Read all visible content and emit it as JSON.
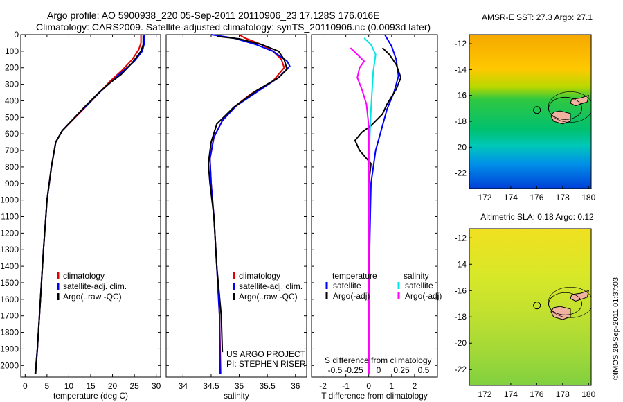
{
  "header": {
    "line1": "Argo profile: AO 5900938_220 05-Sep-2011 20110906_23 17.128S 176.016E",
    "line2": "Climatology: CARS2009. Satellite-adjusted climatology: synTS_20110906.nc (0.0093d later)"
  },
  "side_note": "©IMOS 28-Sep-2011 01:37:03",
  "colors": {
    "climatology": "#e00000",
    "satellite": "#0000ff",
    "argo": "#000000",
    "sal_sat": "#00e5e5",
    "sal_argo": "#ff00ff"
  },
  "chart_data": [
    {
      "type": "line",
      "name": "temperature-profile",
      "xlabel": "temperature (deg C)",
      "ylabel": "",
      "xlim": [
        -1,
        31
      ],
      "ylim": [
        2070,
        0
      ],
      "xticks": [
        0,
        5,
        10,
        15,
        20,
        25,
        30
      ],
      "yticks": [
        0,
        100,
        200,
        300,
        400,
        500,
        600,
        700,
        800,
        900,
        1000,
        1100,
        1200,
        1300,
        1400,
        1500,
        1600,
        1700,
        1800,
        1900,
        2000
      ],
      "legend": [
        "climatology",
        "satellite-adj. clim.",
        "Argo(..raw -QC)"
      ],
      "series": [
        {
          "name": "climatology",
          "color": "#e00000",
          "points": [
            [
              26.5,
              0
            ],
            [
              26.5,
              50
            ],
            [
              26,
              90
            ],
            [
              24.5,
              150
            ],
            [
              22,
              220
            ],
            [
              19.5,
              280
            ],
            [
              17,
              350
            ],
            [
              14.5,
              420
            ],
            [
              11.5,
              500
            ],
            [
              8.5,
              580
            ],
            [
              7,
              650
            ],
            [
              6,
              800
            ],
            [
              5,
              1000
            ],
            [
              4.2,
              1300
            ],
            [
              3.5,
              1600
            ],
            [
              2.8,
              1900
            ],
            [
              2.3,
              2050
            ]
          ]
        },
        {
          "name": "satellite-adj. clim.",
          "color": "#0000ff",
          "points": [
            [
              27.3,
              0
            ],
            [
              27.3,
              50
            ],
            [
              26.8,
              100
            ],
            [
              25,
              160
            ],
            [
              22,
              230
            ],
            [
              19.5,
              290
            ],
            [
              17,
              350
            ],
            [
              14,
              430
            ],
            [
              11,
              510
            ],
            [
              8.5,
              580
            ],
            [
              7,
              650
            ],
            [
              6,
              800
            ],
            [
              5,
              1000
            ],
            [
              4.2,
              1300
            ],
            [
              3.5,
              1600
            ],
            [
              2.8,
              1900
            ],
            [
              2.3,
              2050
            ]
          ]
        },
        {
          "name": "Argo(..raw -QC)",
          "color": "#000000",
          "points": [
            [
              27,
              5
            ],
            [
              27,
              60
            ],
            [
              26.5,
              100
            ],
            [
              24.5,
              170
            ],
            [
              22,
              240
            ],
            [
              19,
              300
            ],
            [
              16.5,
              360
            ],
            [
              13.5,
              440
            ],
            [
              11,
              510
            ],
            [
              8.5,
              580
            ],
            [
              7,
              650
            ],
            [
              6,
              800
            ],
            [
              5,
              1000
            ],
            [
              4.2,
              1300
            ],
            [
              3.5,
              1600
            ],
            [
              2.8,
              1900
            ],
            [
              2.4,
              2050
            ]
          ]
        }
      ]
    },
    {
      "type": "line",
      "name": "salinity-profile",
      "xlabel": "salinity",
      "xlim": [
        33.7,
        36.2
      ],
      "ylim": [
        2070,
        0
      ],
      "xticks": [
        34,
        34.5,
        35,
        35.5,
        36
      ],
      "xticklabels": [
        "34",
        "34.5",
        "35",
        "35.5",
        "36"
      ],
      "legend": [
        "climatology",
        "satellite-adj. clim.",
        "Argo(..raw -QC)"
      ],
      "annotations": [
        "US ARGO PROJECT",
        "PI: STEPHEN RISER"
      ],
      "series": [
        {
          "name": "climatology",
          "color": "#e00000",
          "points": [
            [
              35,
              0
            ],
            [
              35.1,
              20
            ],
            [
              35.4,
              60
            ],
            [
              35.6,
              100
            ],
            [
              35.75,
              150
            ],
            [
              35.8,
              200
            ],
            [
              35.6,
              280
            ],
            [
              35.2,
              360
            ],
            [
              34.9,
              440
            ],
            [
              34.7,
              520
            ],
            [
              34.55,
              620
            ],
            [
              34.48,
              750
            ],
            [
              34.5,
              900
            ],
            [
              34.55,
              1100
            ],
            [
              34.6,
              1400
            ],
            [
              34.65,
              1700
            ],
            [
              34.67,
              2050
            ]
          ]
        },
        {
          "name": "satellite-adj. clim.",
          "color": "#0000ff",
          "points": [
            [
              34.5,
              0
            ],
            [
              34.9,
              20
            ],
            [
              35.3,
              60
            ],
            [
              35.6,
              100
            ],
            [
              35.85,
              160
            ],
            [
              35.9,
              190
            ],
            [
              35.7,
              260
            ],
            [
              35.3,
              350
            ],
            [
              34.95,
              430
            ],
            [
              34.7,
              520
            ],
            [
              34.55,
              620
            ],
            [
              34.48,
              750
            ],
            [
              34.5,
              900
            ],
            [
              34.55,
              1100
            ],
            [
              34.6,
              1400
            ],
            [
              34.65,
              1700
            ],
            [
              34.66,
              2050
            ]
          ]
        },
        {
          "name": "Argo(..raw -QC)",
          "color": "#000000",
          "points": [
            [
              34.6,
              10
            ],
            [
              35,
              25
            ],
            [
              35.4,
              60
            ],
            [
              35.7,
              100
            ],
            [
              35.8,
              150
            ],
            [
              35.85,
              210
            ],
            [
              35.7,
              260
            ],
            [
              35.3,
              340
            ],
            [
              34.9,
              440
            ],
            [
              34.6,
              540
            ],
            [
              34.5,
              650
            ],
            [
              34.45,
              780
            ],
            [
              34.48,
              900
            ],
            [
              34.55,
              1100
            ],
            [
              34.6,
              1400
            ],
            [
              34.68,
              1700
            ],
            [
              34.7,
              1920
            ]
          ]
        }
      ]
    },
    {
      "type": "line",
      "name": "difference-profile",
      "xlabel": "T difference from climatology",
      "xlabel_top": "S difference from climatology",
      "xlim": [
        -2.5,
        3
      ],
      "ylim": [
        2070,
        0
      ],
      "xticks": [
        -2,
        -1,
        0,
        1,
        2
      ],
      "xticks_s": [
        -0.5,
        -0.25,
        0,
        0.25,
        0.5
      ],
      "xticklabels_s": [
        "-0.5",
        "-0.25",
        "0",
        "0.25",
        "0.5"
      ],
      "legend_temperature_title": "temperature",
      "legend_salinity_title": "salinity",
      "legend": [
        "satellite",
        "Argo(-adj)",
        "satellite",
        "Argo(-adj)"
      ],
      "series": [
        {
          "name": "T satellite",
          "color": "#0000ff",
          "points": [
            [
              0.7,
              0
            ],
            [
              1,
              70
            ],
            [
              1.2,
              150
            ],
            [
              1.3,
              250
            ],
            [
              1.1,
              350
            ],
            [
              0.8,
              450
            ],
            [
              0.6,
              550
            ],
            [
              0.3,
              700
            ],
            [
              0.1,
              900
            ],
            [
              0.05,
              1200
            ],
            [
              0,
              1600
            ],
            [
              0,
              2050
            ]
          ]
        },
        {
          "name": "T Argo(-adj)",
          "color": "#000000",
          "points": [
            [
              0.6,
              80
            ],
            [
              0.9,
              120
            ],
            [
              1.2,
              180
            ],
            [
              1.4,
              260
            ],
            [
              1.2,
              330
            ],
            [
              0.8,
              420
            ],
            [
              0.6,
              480
            ],
            [
              0.1,
              550
            ],
            [
              -0.3,
              590
            ],
            [
              -0.6,
              640
            ],
            [
              -0.4,
              700
            ],
            [
              0.1,
              780
            ],
            [
              0,
              900
            ],
            [
              0,
              1200
            ],
            [
              0,
              1600
            ],
            [
              0,
              2050
            ]
          ]
        },
        {
          "name": "S satellite",
          "color": "#00e5e5",
          "points": [
            [
              -0.2,
              20
            ],
            [
              0.1,
              60
            ],
            [
              0.3,
              120
            ],
            [
              0.2,
              220
            ],
            [
              0.15,
              330
            ],
            [
              0.1,
              450
            ],
            [
              0.05,
              600
            ],
            [
              0,
              800
            ],
            [
              0,
              1200
            ],
            [
              0,
              1600
            ],
            [
              0,
              2050
            ]
          ]
        },
        {
          "name": "S Argo(-adj)",
          "color": "#ff00ff",
          "points": [
            [
              -0.8,
              80
            ],
            [
              -0.5,
              120
            ],
            [
              -0.2,
              160
            ],
            [
              -0.4,
              200
            ],
            [
              -0.5,
              260
            ],
            [
              -0.3,
              330
            ],
            [
              -0.1,
              420
            ],
            [
              0,
              550
            ],
            [
              0,
              800
            ],
            [
              0,
              1200
            ],
            [
              0,
              2050
            ]
          ]
        }
      ]
    },
    {
      "type": "heatmap",
      "name": "amsre-sst-map",
      "title": "AMSR-E SST: 27.3 Argo: 27.1",
      "xlim": [
        170.8,
        180.2
      ],
      "ylim": [
        -23.2,
        -11.3
      ],
      "xticks": [
        172,
        174,
        176,
        178,
        180
      ],
      "yticks": [
        -12,
        -14,
        -16,
        -18,
        -20,
        -22
      ],
      "argo_position": [
        176.016,
        -17.128
      ]
    },
    {
      "type": "heatmap",
      "name": "altimetric-sla-map",
      "title": "Altimetric SLA: 0.18 Argo: 0.12",
      "xlim": [
        170.8,
        180.2
      ],
      "ylim": [
        -23.2,
        -11.3
      ],
      "xticks": [
        172,
        174,
        176,
        178,
        180
      ],
      "yticks": [
        -12,
        -14,
        -16,
        -18,
        -20,
        -22
      ],
      "argo_position": [
        176.016,
        -17.128
      ]
    }
  ]
}
